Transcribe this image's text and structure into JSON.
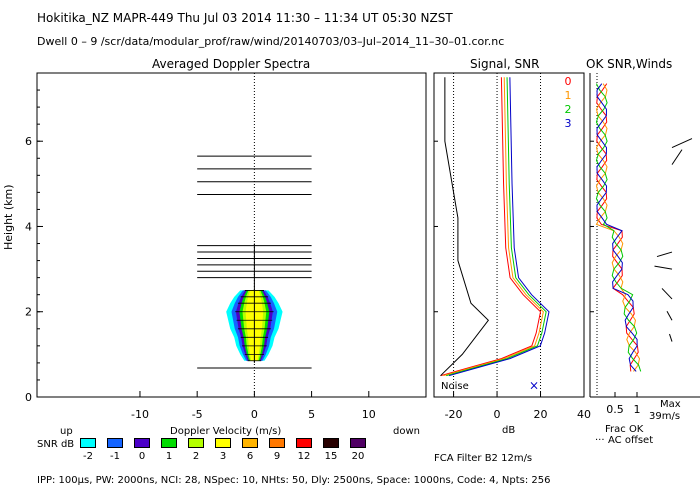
{
  "header": {
    "line1": "Hokitika_NZ   MAPR-449   Thu Jul 03 2014  11:30 – 11:34 UT 05:30 NZST",
    "line2": "Dwell   0  –   9    /scr/data/modular_prof/raw/wind/20140703/03–Jul–2014_11–30–01.cor.nc"
  },
  "footer": {
    "params": "IPP: 100µs,  PW: 2000ns,  NCI:  28,  NSpec: 10, NHts: 50,  Dly: 2500ns,  Space: 1000ns,  Code: 4,  Npts: 256",
    "fca": "FCA Filter B2 12m/s"
  },
  "snr_legend": {
    "title": "SNR dB",
    "labels": [
      "-2",
      "-1",
      "0",
      "1",
      "2",
      "3",
      "6",
      "9",
      "12",
      "15",
      "20"
    ],
    "colors": [
      "#00ffff",
      "#1464ff",
      "#4b00c8",
      "#00dc00",
      "#b4ff00",
      "#ffff00",
      "#ffb400",
      "#ff7800",
      "#ff0000",
      "#280000",
      "#500064"
    ]
  },
  "chart_data": [
    {
      "type": "area",
      "title": "Averaged Doppler Spectra",
      "xlabel": "Doppler Velocity (m/s)",
      "ylabel": "Height (km)",
      "xlim": [
        -19,
        15
      ],
      "ylim": [
        0,
        7.6
      ],
      "xticks": [
        -10,
        -5,
        0,
        5,
        10
      ],
      "yticks": [
        0,
        2,
        4,
        6
      ],
      "up_label": "up",
      "down_label": "down",
      "noise_bars_km": [
        0.68,
        2.8,
        2.95,
        3.1,
        3.25,
        3.4,
        3.55,
        4.75,
        5.05,
        5.35,
        5.65
      ],
      "noise_bar_halfwidth_ms": 5,
      "spectra": [
        {
          "h": 0.85,
          "w": 0.5
        },
        {
          "h": 1.0,
          "w": 0.7
        },
        {
          "h": 1.2,
          "w": 0.9
        },
        {
          "h": 1.4,
          "w": 1.0
        },
        {
          "h": 1.6,
          "w": 1.2
        },
        {
          "h": 1.8,
          "w": 1.3
        },
        {
          "h": 2.0,
          "w": 1.4
        },
        {
          "h": 2.2,
          "w": 1.2
        },
        {
          "h": 2.35,
          "w": 1.0
        },
        {
          "h": 2.5,
          "w": 0.7
        }
      ]
    },
    {
      "type": "line",
      "title": "Signal, SNR",
      "xlabel": "dB",
      "xlim": [
        -29,
        40
      ],
      "ylim": [
        0,
        7.6
      ],
      "xticks": [
        -20,
        0,
        20,
        40
      ],
      "noise_label": "Noise",
      "series": [
        {
          "name": "0",
          "color": "#ff0000"
        },
        {
          "name": "1",
          "color": "#ff9600"
        },
        {
          "name": "2",
          "color": "#00c800"
        },
        {
          "name": "3",
          "color": "#0000c8"
        }
      ]
    },
    {
      "type": "line",
      "title": "OK SNR,Winds",
      "xlabel": "Frac OK",
      "xticks": [
        "0.5",
        "1"
      ],
      "offset_label": "AC offset",
      "max_label": "Max",
      "max_value": "39m/s"
    }
  ]
}
